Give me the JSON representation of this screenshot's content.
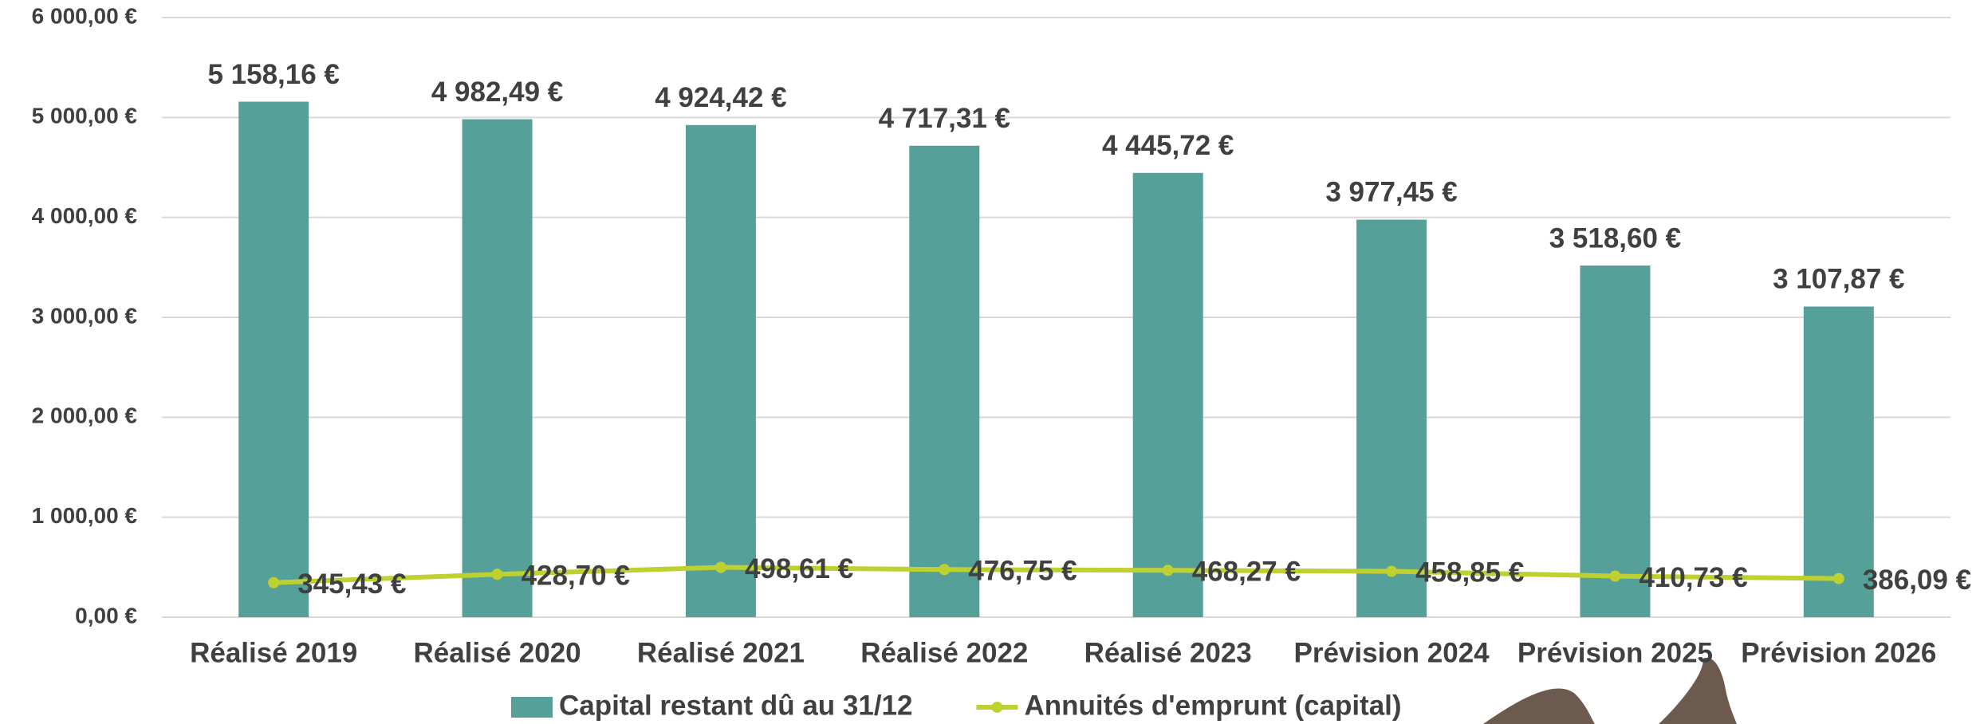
{
  "chart_data": {
    "type": "bar",
    "categories": [
      "Réalisé 2019",
      "Réalisé 2020",
      "Réalisé 2021",
      "Réalisé 2022",
      "Réalisé 2023",
      "Prévision 2024",
      "Prévision 2025",
      "Prévision 2026"
    ],
    "series": [
      {
        "name": "Capital restant dû au 31/12",
        "type": "bar",
        "color": "#56a09a",
        "values": [
          5158.16,
          4982.49,
          4924.42,
          4717.31,
          4445.72,
          3977.45,
          3518.6,
          3107.87
        ],
        "value_labels": [
          "5 158,16 €",
          "4 982,49 €",
          "4 924,42 €",
          "4 717,31 €",
          "4 445,72 €",
          "3 977,45 €",
          "3 518,60 €",
          "3 107,87 €"
        ]
      },
      {
        "name": "Annuités d'emprunt (capital)",
        "type": "line",
        "color": "#bfd130",
        "values": [
          345.43,
          428.7,
          498.61,
          476.75,
          468.27,
          458.85,
          410.73,
          386.09
        ],
        "value_labels": [
          "345,43 €",
          "428,70 €",
          "498,61 €",
          "476,75 €",
          "468,27 €",
          "458,85 €",
          "410,73 €",
          "386,09 €"
        ]
      }
    ],
    "ylim": [
      0,
      6000
    ],
    "yticks": [
      {
        "value": 0,
        "label": "0,00 €"
      },
      {
        "value": 1000,
        "label": "1 000,00 €"
      },
      {
        "value": 2000,
        "label": "2 000,00 €"
      },
      {
        "value": 3000,
        "label": "3 000,00 €"
      },
      {
        "value": 4000,
        "label": "4 000,00 €"
      },
      {
        "value": 5000,
        "label": "5 000,00 €"
      },
      {
        "value": 6000,
        "label": "6 000,00 €"
      }
    ],
    "grid": true,
    "legend": "bottom"
  }
}
